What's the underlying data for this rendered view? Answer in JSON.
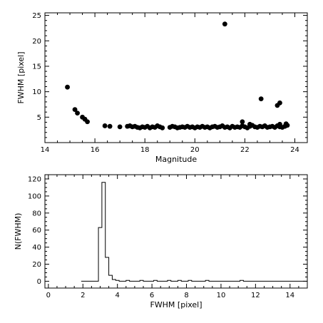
{
  "chart_data": [
    {
      "type": "scatter",
      "xlabel": "Magnitude",
      "ylabel": "FWHM [pixel]",
      "xlim": [
        14,
        24.5
      ],
      "ylim": [
        0,
        25.5
      ],
      "xticks": [
        14,
        16,
        18,
        20,
        22,
        24
      ],
      "yticks": [
        5,
        10,
        15,
        20,
        25
      ],
      "grid": false,
      "marker_color": "#000000",
      "points": [
        [
          14.9,
          10.9
        ],
        [
          15.2,
          6.5
        ],
        [
          15.3,
          5.8
        ],
        [
          15.5,
          5.0
        ],
        [
          15.6,
          4.6
        ],
        [
          15.7,
          4.1
        ],
        [
          16.4,
          3.3
        ],
        [
          16.6,
          3.2
        ],
        [
          17.0,
          3.1
        ],
        [
          17.3,
          3.2
        ],
        [
          17.4,
          3.3
        ],
        [
          17.5,
          3.1
        ],
        [
          17.6,
          3.2
        ],
        [
          17.7,
          3.0
        ],
        [
          17.8,
          2.9
        ],
        [
          17.9,
          3.1
        ],
        [
          18.0,
          3.0
        ],
        [
          18.1,
          3.2
        ],
        [
          18.2,
          2.9
        ],
        [
          18.3,
          3.1
        ],
        [
          18.4,
          3.0
        ],
        [
          18.5,
          3.3
        ],
        [
          18.6,
          3.1
        ],
        [
          18.7,
          2.9
        ],
        [
          19.0,
          3.0
        ],
        [
          19.1,
          3.2
        ],
        [
          19.2,
          3.1
        ],
        [
          19.3,
          2.9
        ],
        [
          19.4,
          3.0
        ],
        [
          19.5,
          3.1
        ],
        [
          19.6,
          3.0
        ],
        [
          19.7,
          3.2
        ],
        [
          19.8,
          3.0
        ],
        [
          19.9,
          3.1
        ],
        [
          20.0,
          2.9
        ],
        [
          20.1,
          3.1
        ],
        [
          20.2,
          3.0
        ],
        [
          20.3,
          3.2
        ],
        [
          20.4,
          3.0
        ],
        [
          20.5,
          3.1
        ],
        [
          20.6,
          2.9
        ],
        [
          20.7,
          3.1
        ],
        [
          20.8,
          3.2
        ],
        [
          20.9,
          3.0
        ],
        [
          21.0,
          3.1
        ],
        [
          21.1,
          3.3
        ],
        [
          21.2,
          3.0
        ],
        [
          21.3,
          3.1
        ],
        [
          21.4,
          2.9
        ],
        [
          21.5,
          3.2
        ],
        [
          21.6,
          3.0
        ],
        [
          21.7,
          3.1
        ],
        [
          21.8,
          3.0
        ],
        [
          21.9,
          3.3
        ],
        [
          22.0,
          3.1
        ],
        [
          22.1,
          2.9
        ],
        [
          22.2,
          3.2
        ],
        [
          22.3,
          3.4
        ],
        [
          22.4,
          3.1
        ],
        [
          22.5,
          3.0
        ],
        [
          22.6,
          3.2
        ],
        [
          22.7,
          3.1
        ],
        [
          22.8,
          3.3
        ],
        [
          22.9,
          3.0
        ],
        [
          23.0,
          3.1
        ],
        [
          23.1,
          3.2
        ],
        [
          23.2,
          3.0
        ],
        [
          23.3,
          3.3
        ],
        [
          23.4,
          3.1
        ],
        [
          23.5,
          3.0
        ],
        [
          23.6,
          3.2
        ],
        [
          23.7,
          3.4
        ],
        [
          21.9,
          4.1
        ],
        [
          22.2,
          3.6
        ],
        [
          23.4,
          3.6
        ],
        [
          23.65,
          3.7
        ],
        [
          21.2,
          23.3
        ],
        [
          22.65,
          8.6
        ],
        [
          23.3,
          7.3
        ],
        [
          23.4,
          7.8
        ]
      ]
    },
    {
      "type": "histogram",
      "xlabel": "FWHM [pixel]",
      "ylabel": "N(FWHM)",
      "xlim": [
        -0.2,
        15
      ],
      "ylim": [
        -8,
        125
      ],
      "xticks": [
        0,
        2,
        4,
        6,
        8,
        10,
        12,
        14
      ],
      "yticks": [
        0,
        20,
        40,
        60,
        80,
        100,
        120
      ],
      "grid": false,
      "bin_width": 0.2,
      "x_start": 1.9,
      "x_end": 15,
      "counts": [
        0,
        0,
        0,
        0,
        0,
        63,
        116,
        28,
        7,
        2,
        1,
        0,
        0,
        1,
        0,
        0,
        0,
        1,
        0,
        0,
        0,
        1,
        0,
        0,
        0,
        1,
        0,
        0,
        1,
        0,
        0,
        1,
        0,
        0,
        0,
        0,
        1,
        0,
        0,
        0,
        0,
        0,
        0,
        0,
        0,
        0,
        1,
        0
      ]
    }
  ]
}
